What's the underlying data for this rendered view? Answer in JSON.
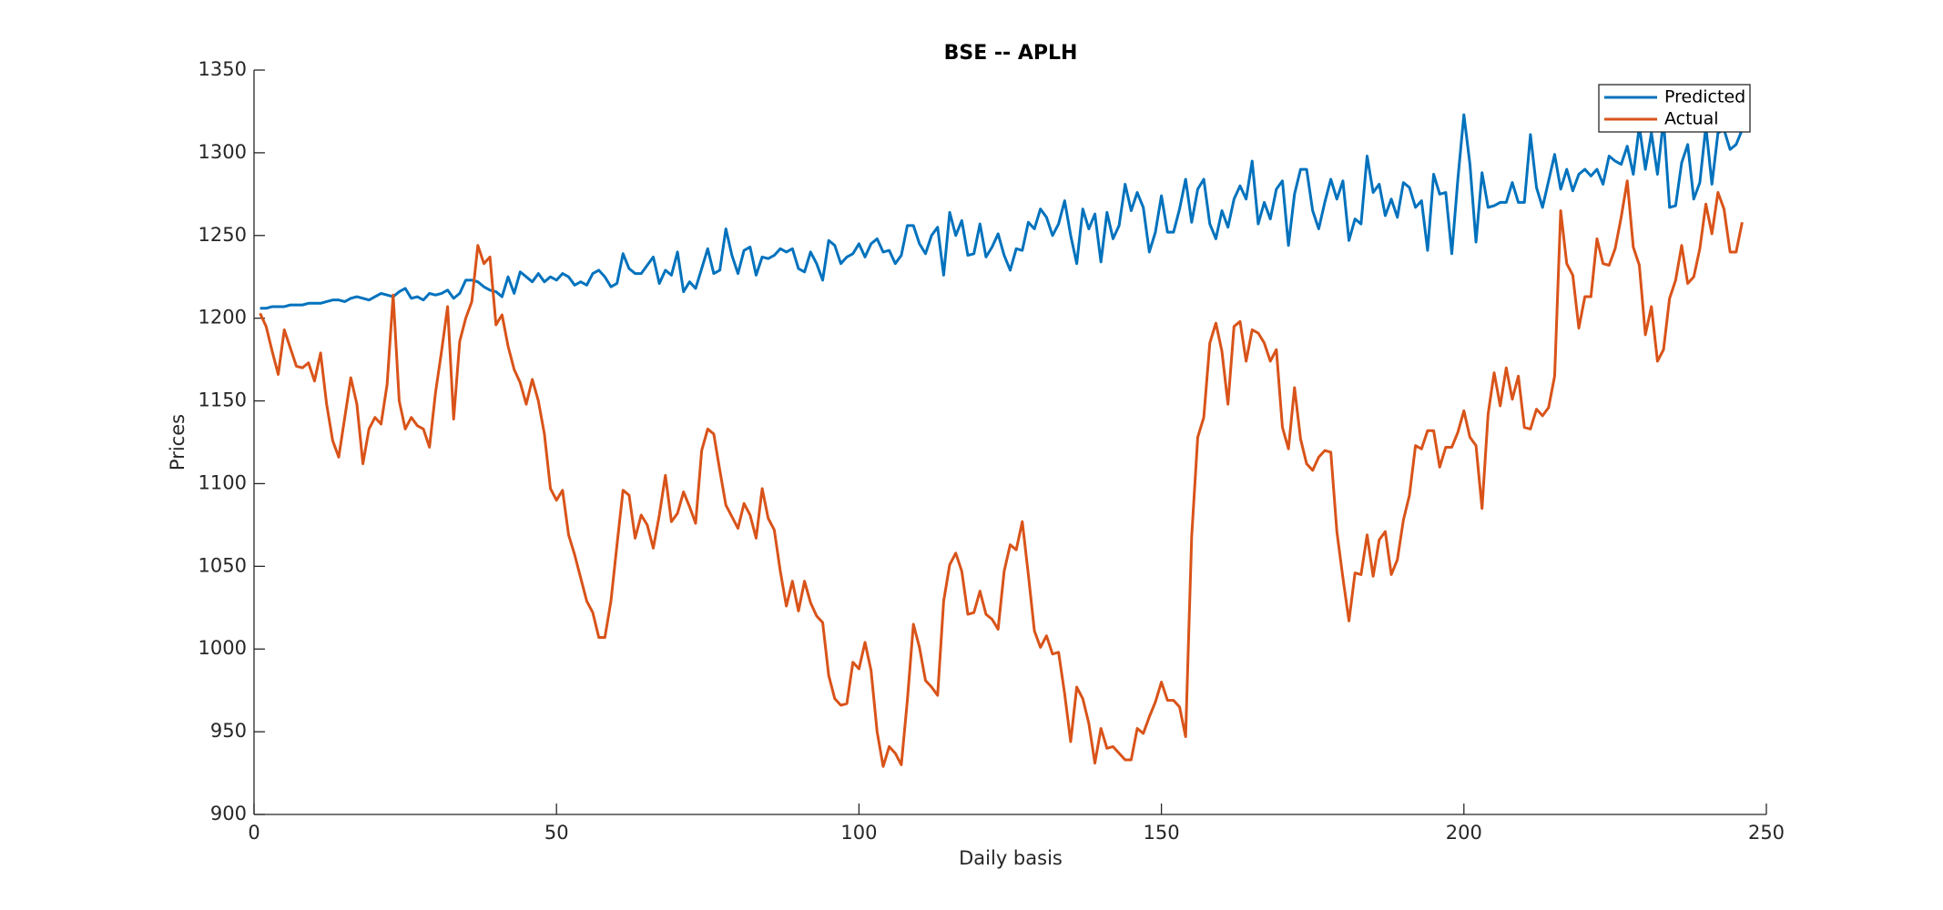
{
  "chart_data": {
    "type": "line",
    "title": "BSE -- APLH",
    "x_label": "Daily basis",
    "y_label": "Prices",
    "x": [
      1,
      2,
      3,
      4,
      5,
      6,
      7,
      8,
      9,
      10,
      11,
      12,
      13,
      14,
      15,
      16,
      17,
      18,
      19,
      20,
      21,
      22,
      23,
      24,
      25,
      26,
      27,
      28,
      29,
      30,
      31,
      32,
      33,
      34,
      35,
      36,
      37,
      38,
      39,
      40,
      41,
      42,
      43,
      44,
      45,
      46,
      47,
      48,
      49,
      50,
      51,
      52,
      53,
      54,
      55,
      56,
      57,
      58,
      59,
      60,
      61,
      62,
      63,
      64,
      65,
      66,
      67,
      68,
      69,
      70,
      71,
      72,
      73,
      74,
      75,
      76,
      77,
      78,
      79,
      80,
      81,
      82,
      83,
      84,
      85,
      86,
      87,
      88,
      89,
      90,
      91,
      92,
      93,
      94,
      95,
      96,
      97,
      98,
      99,
      100,
      101,
      102,
      103,
      104,
      105,
      106,
      107,
      108,
      109,
      110,
      111,
      112,
      113,
      114,
      115,
      116,
      117,
      118,
      119,
      120,
      121,
      122,
      123,
      124,
      125,
      126,
      127,
      128,
      129,
      130,
      131,
      132,
      133,
      134,
      135,
      136,
      137,
      138,
      139,
      140,
      141,
      142,
      143,
      144,
      145,
      146,
      147,
      148,
      149,
      150,
      151,
      152,
      153,
      154,
      155,
      156,
      157,
      158,
      159,
      160,
      161,
      162,
      163,
      164,
      165,
      166,
      167,
      168,
      169,
      170,
      171,
      172,
      173,
      174,
      175,
      176,
      177,
      178,
      179,
      180,
      181,
      182,
      183,
      184,
      185,
      186,
      187,
      188,
      189,
      190,
      191,
      192,
      193,
      194,
      195,
      196,
      197,
      198,
      199,
      200,
      201,
      202,
      203,
      204,
      205,
      206,
      207,
      208,
      209,
      210,
      211,
      212,
      213,
      214,
      215,
      216,
      217,
      218,
      219,
      220,
      221,
      222,
      223,
      224,
      225,
      226,
      227,
      228,
      229,
      230,
      231,
      232,
      233,
      234,
      235,
      236,
      237,
      238,
      239,
      240,
      241,
      242,
      243,
      244,
      245,
      246
    ],
    "series": [
      {
        "name": "Predicted",
        "color": "#0072bd",
        "values": [
          1206,
          1206,
          1207,
          1207,
          1207,
          1208,
          1208,
          1208,
          1209,
          1209,
          1209,
          1210,
          1211,
          1211,
          1210,
          1212,
          1213,
          1212,
          1211,
          1213,
          1215,
          1214,
          1213,
          1216,
          1218,
          1212,
          1213,
          1211,
          1215,
          1214,
          1215,
          1217,
          1212,
          1215,
          1223,
          1223,
          1222,
          1219,
          1217,
          1216,
          1213,
          1225,
          1215,
          1228,
          1225,
          1222,
          1227,
          1222,
          1225,
          1223,
          1227,
          1225,
          1220,
          1222,
          1220,
          1227,
          1229,
          1225,
          1219,
          1221,
          1239,
          1230,
          1227,
          1227,
          1232,
          1237,
          1221,
          1229,
          1226,
          1240,
          1216,
          1222,
          1218,
          1230,
          1242,
          1227,
          1229,
          1254,
          1238,
          1227,
          1241,
          1243,
          1226,
          1237,
          1236,
          1238,
          1242,
          1240,
          1242,
          1230,
          1228,
          1240,
          1233,
          1223,
          1247,
          1244,
          1233,
          1237,
          1239,
          1245,
          1237,
          1245,
          1248,
          1240,
          1241,
          1233,
          1238,
          1256,
          1256,
          1245,
          1239,
          1250,
          1255,
          1226,
          1264,
          1250,
          1259,
          1238,
          1239,
          1257,
          1237,
          1243,
          1251,
          1238,
          1229,
          1242,
          1241,
          1258,
          1254,
          1266,
          1261,
          1250,
          1257,
          1271,
          1250,
          1233,
          1266,
          1254,
          1263,
          1234,
          1264,
          1248,
          1256,
          1281,
          1265,
          1276,
          1267,
          1240,
          1252,
          1274,
          1252,
          1252,
          1266,
          1284,
          1258,
          1278,
          1284,
          1257,
          1248,
          1265,
          1255,
          1272,
          1280,
          1272,
          1295,
          1257,
          1270,
          1260,
          1278,
          1283,
          1244,
          1275,
          1290,
          1290,
          1265,
          1254,
          1270,
          1284,
          1272,
          1283,
          1247,
          1260,
          1257,
          1298,
          1276,
          1281,
          1262,
          1272,
          1261,
          1282,
          1279,
          1267,
          1271,
          1241,
          1287,
          1275,
          1276,
          1239,
          1284,
          1323,
          1293,
          1246,
          1288,
          1267,
          1268,
          1270,
          1270,
          1282,
          1270,
          1270,
          1311,
          1279,
          1267,
          1283,
          1299,
          1278,
          1290,
          1277,
          1287,
          1290,
          1286,
          1290,
          1281,
          1298,
          1295,
          1293,
          1304,
          1287,
          1316,
          1290,
          1312,
          1287,
          1320,
          1267,
          1268,
          1294,
          1305,
          1272,
          1282,
          1316,
          1281,
          1312,
          1314,
          1302,
          1305,
          1314
        ]
      },
      {
        "name": "Actual",
        "color": "#d95319",
        "values": [
          1203,
          1195,
          1180,
          1166,
          1193,
          1182,
          1171,
          1170,
          1173,
          1162,
          1179,
          1148,
          1126,
          1116,
          1140,
          1164,
          1148,
          1112,
          1133,
          1140,
          1136,
          1160,
          1214,
          1150,
          1133,
          1140,
          1135,
          1133,
          1122,
          1155,
          1180,
          1207,
          1139,
          1186,
          1200,
          1210,
          1244,
          1233,
          1237,
          1196,
          1202,
          1183,
          1169,
          1161,
          1148,
          1163,
          1150,
          1130,
          1097,
          1090,
          1096,
          1069,
          1057,
          1043,
          1029,
          1022,
          1007,
          1007,
          1029,
          1063,
          1096,
          1093,
          1067,
          1081,
          1075,
          1061,
          1081,
          1105,
          1077,
          1082,
          1095,
          1086,
          1076,
          1120,
          1133,
          1130,
          1108,
          1087,
          1080,
          1073,
          1088,
          1081,
          1067,
          1097,
          1079,
          1072,
          1047,
          1026,
          1041,
          1023,
          1041,
          1028,
          1020,
          1016,
          984,
          970,
          966,
          967,
          992,
          988,
          1004,
          987,
          950,
          929,
          941,
          937,
          930,
          969,
          1015,
          1001,
          981,
          977,
          972,
          1029,
          1051,
          1058,
          1047,
          1021,
          1022,
          1035,
          1021,
          1018,
          1012,
          1047,
          1063,
          1060,
          1077,
          1045,
          1011,
          1001,
          1008,
          997,
          998,
          973,
          944,
          977,
          970,
          955,
          931,
          952,
          940,
          941,
          937,
          933,
          933,
          952,
          949,
          959,
          968,
          980,
          969,
          969,
          965,
          947,
          1068,
          1128,
          1140,
          1185,
          1197,
          1180,
          1148,
          1195,
          1198,
          1174,
          1193,
          1191,
          1185,
          1174,
          1181,
          1134,
          1121,
          1158,
          1127,
          1112,
          1108,
          1116,
          1120,
          1119,
          1071,
          1043,
          1017,
          1046,
          1045,
          1069,
          1044,
          1066,
          1071,
          1045,
          1054,
          1078,
          1093,
          1123,
          1121,
          1132,
          1132,
          1110,
          1122,
          1122,
          1131,
          1144,
          1128,
          1123,
          1085,
          1142,
          1167,
          1147,
          1170,
          1151,
          1165,
          1134,
          1133,
          1145,
          1141,
          1146,
          1165,
          1265,
          1233,
          1226,
          1194,
          1213,
          1213,
          1248,
          1233,
          1232,
          1242,
          1261,
          1283,
          1243,
          1232,
          1190,
          1207,
          1174,
          1181,
          1212,
          1223,
          1244,
          1221,
          1225,
          1242,
          1269,
          1251,
          1276,
          1266,
          1240,
          1240,
          1258
        ]
      }
    ],
    "xlim": [
      0,
      250
    ],
    "xticks": [
      0,
      50,
      100,
      150,
      200,
      250
    ],
    "ylim": [
      900,
      1350
    ],
    "yticks": [
      900,
      950,
      1000,
      1050,
      1100,
      1150,
      1200,
      1250,
      1300,
      1350
    ],
    "grid": false,
    "legend": "upper right"
  }
}
